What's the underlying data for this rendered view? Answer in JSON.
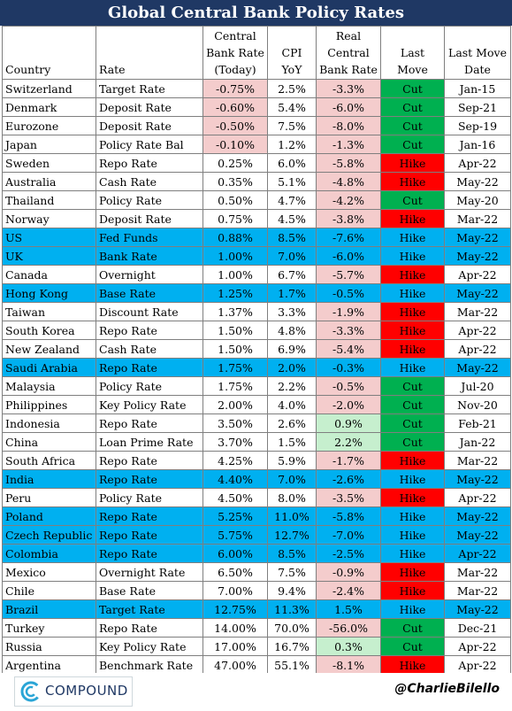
{
  "title": "Global Central Bank Policy Rates",
  "chart_data": {
    "type": "table",
    "title": "Global Central Bank Policy Rates",
    "columns": [
      "Country",
      "Rate",
      "Central Bank Rate (Today)",
      "CPI YoY",
      "Real Central Bank Rate",
      "Last Move",
      "Last Move Date"
    ],
    "rows": [
      {
        "country": "Switzerland",
        "rate": "Target Rate",
        "cb_rate": "-0.75%",
        "cpi": "2.5%",
        "real_rate": "-3.3%",
        "last_move": "Cut",
        "date": "Jan-15",
        "highlight": false
      },
      {
        "country": "Denmark",
        "rate": "Deposit Rate",
        "cb_rate": "-0.60%",
        "cpi": "5.4%",
        "real_rate": "-6.0%",
        "last_move": "Cut",
        "date": "Sep-21",
        "highlight": false
      },
      {
        "country": "Eurozone",
        "rate": "Deposit Rate",
        "cb_rate": "-0.50%",
        "cpi": "7.5%",
        "real_rate": "-8.0%",
        "last_move": "Cut",
        "date": "Sep-19",
        "highlight": false
      },
      {
        "country": "Japan",
        "rate": "Policy Rate Bal",
        "cb_rate": "-0.10%",
        "cpi": "1.2%",
        "real_rate": "-1.3%",
        "last_move": "Cut",
        "date": "Jan-16",
        "highlight": false
      },
      {
        "country": "Sweden",
        "rate": "Repo Rate",
        "cb_rate": "0.25%",
        "cpi": "6.0%",
        "real_rate": "-5.8%",
        "last_move": "Hike",
        "date": "Apr-22",
        "highlight": false
      },
      {
        "country": "Australia",
        "rate": "Cash Rate",
        "cb_rate": "0.35%",
        "cpi": "5.1%",
        "real_rate": "-4.8%",
        "last_move": "Hike",
        "date": "May-22",
        "highlight": false
      },
      {
        "country": "Thailand",
        "rate": "Policy Rate",
        "cb_rate": "0.50%",
        "cpi": "4.7%",
        "real_rate": "-4.2%",
        "last_move": "Cut",
        "date": "May-20",
        "highlight": false
      },
      {
        "country": "Norway",
        "rate": "Deposit Rate",
        "cb_rate": "0.75%",
        "cpi": "4.5%",
        "real_rate": "-3.8%",
        "last_move": "Hike",
        "date": "Mar-22",
        "highlight": false
      },
      {
        "country": "US",
        "rate": "Fed Funds",
        "cb_rate": "0.88%",
        "cpi": "8.5%",
        "real_rate": "-7.6%",
        "last_move": "Hike",
        "date": "May-22",
        "highlight": true
      },
      {
        "country": "UK",
        "rate": "Bank Rate",
        "cb_rate": "1.00%",
        "cpi": "7.0%",
        "real_rate": "-6.0%",
        "last_move": "Hike",
        "date": "May-22",
        "highlight": true
      },
      {
        "country": "Canada",
        "rate": "Overnight",
        "cb_rate": "1.00%",
        "cpi": "6.7%",
        "real_rate": "-5.7%",
        "last_move": "Hike",
        "date": "Apr-22",
        "highlight": false
      },
      {
        "country": "Hong Kong",
        "rate": "Base Rate",
        "cb_rate": "1.25%",
        "cpi": "1.7%",
        "real_rate": "-0.5%",
        "last_move": "Hike",
        "date": "May-22",
        "highlight": true
      },
      {
        "country": "Taiwan",
        "rate": "Discount Rate",
        "cb_rate": "1.37%",
        "cpi": "3.3%",
        "real_rate": "-1.9%",
        "last_move": "Hike",
        "date": "Mar-22",
        "highlight": false
      },
      {
        "country": "South Korea",
        "rate": "Repo Rate",
        "cb_rate": "1.50%",
        "cpi": "4.8%",
        "real_rate": "-3.3%",
        "last_move": "Hike",
        "date": "Apr-22",
        "highlight": false
      },
      {
        "country": "New Zealand",
        "rate": "Cash Rate",
        "cb_rate": "1.50%",
        "cpi": "6.9%",
        "real_rate": "-5.4%",
        "last_move": "Hike",
        "date": "Apr-22",
        "highlight": false
      },
      {
        "country": "Saudi Arabia",
        "rate": "Repo Rate",
        "cb_rate": "1.75%",
        "cpi": "2.0%",
        "real_rate": "-0.3%",
        "last_move": "Hike",
        "date": "May-22",
        "highlight": true
      },
      {
        "country": "Malaysia",
        "rate": "Policy Rate",
        "cb_rate": "1.75%",
        "cpi": "2.2%",
        "real_rate": "-0.5%",
        "last_move": "Cut",
        "date": "Jul-20",
        "highlight": false
      },
      {
        "country": "Philippines",
        "rate": "Key Policy Rate",
        "cb_rate": "2.00%",
        "cpi": "4.0%",
        "real_rate": "-2.0%",
        "last_move": "Cut",
        "date": "Nov-20",
        "highlight": false
      },
      {
        "country": "Indonesia",
        "rate": "Repo Rate",
        "cb_rate": "3.50%",
        "cpi": "2.6%",
        "real_rate": "0.9%",
        "last_move": "Cut",
        "date": "Feb-21",
        "highlight": false
      },
      {
        "country": "China",
        "rate": "Loan Prime Rate",
        "cb_rate": "3.70%",
        "cpi": "1.5%",
        "real_rate": "2.2%",
        "last_move": "Cut",
        "date": "Jan-22",
        "highlight": false
      },
      {
        "country": "South Africa",
        "rate": "Repo Rate",
        "cb_rate": "4.25%",
        "cpi": "5.9%",
        "real_rate": "-1.7%",
        "last_move": "Hike",
        "date": "Mar-22",
        "highlight": false
      },
      {
        "country": "India",
        "rate": "Repo Rate",
        "cb_rate": "4.40%",
        "cpi": "7.0%",
        "real_rate": "-2.6%",
        "last_move": "Hike",
        "date": "May-22",
        "highlight": true
      },
      {
        "country": "Peru",
        "rate": "Policy Rate",
        "cb_rate": "4.50%",
        "cpi": "8.0%",
        "real_rate": "-3.5%",
        "last_move": "Hike",
        "date": "Apr-22",
        "highlight": false
      },
      {
        "country": "Poland",
        "rate": "Repo Rate",
        "cb_rate": "5.25%",
        "cpi": "11.0%",
        "real_rate": "-5.8%",
        "last_move": "Hike",
        "date": "May-22",
        "highlight": true
      },
      {
        "country": "Czech Republic",
        "rate": "Repo Rate",
        "cb_rate": "5.75%",
        "cpi": "12.7%",
        "real_rate": "-7.0%",
        "last_move": "Hike",
        "date": "May-22",
        "highlight": true
      },
      {
        "country": "Colombia",
        "rate": "Repo Rate",
        "cb_rate": "6.00%",
        "cpi": "8.5%",
        "real_rate": "-2.5%",
        "last_move": "Hike",
        "date": "Apr-22",
        "highlight": true
      },
      {
        "country": "Mexico",
        "rate": "Overnight Rate",
        "cb_rate": "6.50%",
        "cpi": "7.5%",
        "real_rate": "-0.9%",
        "last_move": "Hike",
        "date": "Mar-22",
        "highlight": false
      },
      {
        "country": "Chile",
        "rate": "Base Rate",
        "cb_rate": "7.00%",
        "cpi": "9.4%",
        "real_rate": "-2.4%",
        "last_move": "Hike",
        "date": "Mar-22",
        "highlight": false
      },
      {
        "country": "Brazil",
        "rate": "Target Rate",
        "cb_rate": "12.75%",
        "cpi": "11.3%",
        "real_rate": "1.5%",
        "last_move": "Hike",
        "date": "May-22",
        "highlight": true
      },
      {
        "country": "Turkey",
        "rate": "Repo Rate",
        "cb_rate": "14.00%",
        "cpi": "70.0%",
        "real_rate": "-56.0%",
        "last_move": "Cut",
        "date": "Dec-21",
        "highlight": false
      },
      {
        "country": "Russia",
        "rate": "Key Policy Rate",
        "cb_rate": "17.00%",
        "cpi": "16.7%",
        "real_rate": "0.3%",
        "last_move": "Cut",
        "date": "Apr-22",
        "highlight": false
      },
      {
        "country": "Argentina",
        "rate": "Benchmark Rate",
        "cb_rate": "47.00%",
        "cpi": "55.1%",
        "real_rate": "-8.1%",
        "last_move": "Hike",
        "date": "Apr-22",
        "highlight": false
      }
    ]
  },
  "header": {
    "country": "Country",
    "rate": "Rate",
    "cb_rate_l1": "Central",
    "cb_rate_l2": "Bank Rate",
    "cb_rate_l3": "(Today)",
    "cpi": "CPI YoY",
    "real_l1": "Real",
    "real_l2": "Central",
    "real_l3": "Bank Rate",
    "last_move": "Last Move",
    "date_l1": "Last Move",
    "date_l2": "Date"
  },
  "colors": {
    "title_bg": "#1f3864",
    "highlight_row": "#00b0f0",
    "negative_rate": "#f4cccc",
    "positive_rate": "#c6efce",
    "cut": "#00b050",
    "hike": "#ff0000"
  },
  "footer": {
    "logo_text": "COMPOUND",
    "logo_icon": "compound-logo-icon",
    "handle": "@CharlieBilello"
  }
}
